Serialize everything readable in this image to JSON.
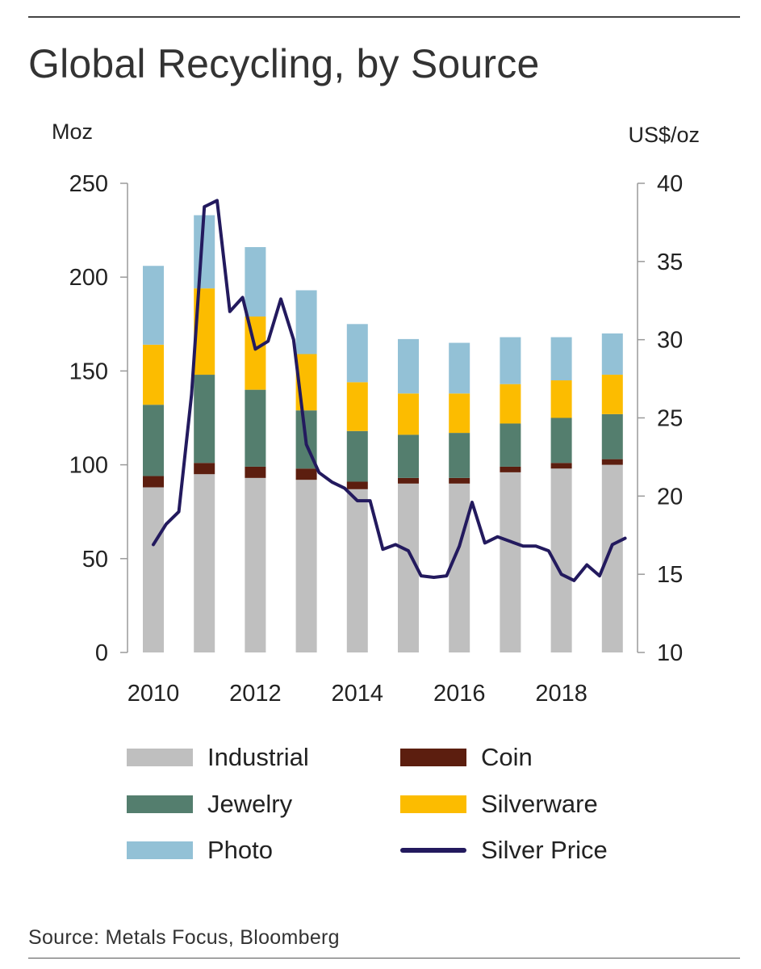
{
  "title": "Global Recycling, by Source",
  "source": "Source: Metals Focus, Bloomberg",
  "chart_data": {
    "type": "bar",
    "stacked": true,
    "categories": [
      "2010",
      "2011",
      "2012",
      "2013",
      "2014",
      "2015",
      "2016",
      "2017",
      "2018",
      "2019"
    ],
    "x_tick_labels": [
      "2010",
      "2012",
      "2014",
      "2016",
      "2018"
    ],
    "left_axis": {
      "label": "Moz",
      "ylim": [
        0,
        250
      ],
      "ticks": [
        "0",
        "50",
        "100",
        "150",
        "200",
        "250"
      ]
    },
    "right_axis": {
      "label": "US$/oz",
      "ylim": [
        10,
        40
      ],
      "ticks": [
        "10",
        "15",
        "20",
        "25",
        "30",
        "35",
        "40"
      ]
    },
    "series": [
      {
        "name": "Industrial",
        "color": "#bfbfbf",
        "axis": "left",
        "values": [
          88,
          95,
          93,
          92,
          87,
          90,
          90,
          96,
          98,
          100
        ]
      },
      {
        "name": "Coin",
        "color": "#5c1e0f",
        "axis": "left",
        "values": [
          6,
          6,
          6,
          6,
          4,
          3,
          3,
          3,
          3,
          3
        ]
      },
      {
        "name": "Jewelry",
        "color": "#547e6e",
        "axis": "left",
        "values": [
          38,
          47,
          41,
          31,
          27,
          23,
          24,
          23,
          24,
          24
        ]
      },
      {
        "name": "Silverware",
        "color": "#fcbc00",
        "axis": "left",
        "values": [
          32,
          46,
          39,
          30,
          26,
          22,
          21,
          21,
          20,
          21
        ]
      },
      {
        "name": "Photo",
        "color": "#93c1d6",
        "axis": "left",
        "values": [
          42,
          39,
          37,
          34,
          31,
          29,
          27,
          25,
          23,
          22
        ]
      }
    ],
    "line_series": {
      "name": "Silver Price",
      "color": "#231a5e",
      "axis": "right",
      "x": [
        2010.0,
        2010.25,
        2010.5,
        2010.75,
        2011.0,
        2011.25,
        2011.5,
        2011.75,
        2012.0,
        2012.25,
        2012.5,
        2012.75,
        2013.0,
        2013.25,
        2013.5,
        2013.75,
        2014.0,
        2014.25,
        2014.5,
        2014.75,
        2015.0,
        2015.25,
        2015.5,
        2015.75,
        2016.0,
        2016.25,
        2016.5,
        2016.75,
        2017.0,
        2017.25,
        2017.5,
        2017.75,
        2018.0,
        2018.25,
        2018.5,
        2018.75,
        2019.0,
        2019.25
      ],
      "values": [
        16.9,
        18.2,
        19.0,
        26.5,
        38.5,
        38.9,
        31.8,
        32.7,
        29.4,
        29.9,
        32.6,
        30.0,
        23.3,
        21.5,
        20.9,
        20.5,
        19.7,
        19.7,
        16.6,
        16.9,
        16.5,
        14.9,
        14.8,
        14.9,
        16.8,
        19.6,
        17.0,
        17.4,
        17.1,
        16.8,
        16.8,
        16.5,
        15.0,
        14.6,
        15.6,
        14.9,
        16.9,
        17.3
      ]
    }
  }
}
